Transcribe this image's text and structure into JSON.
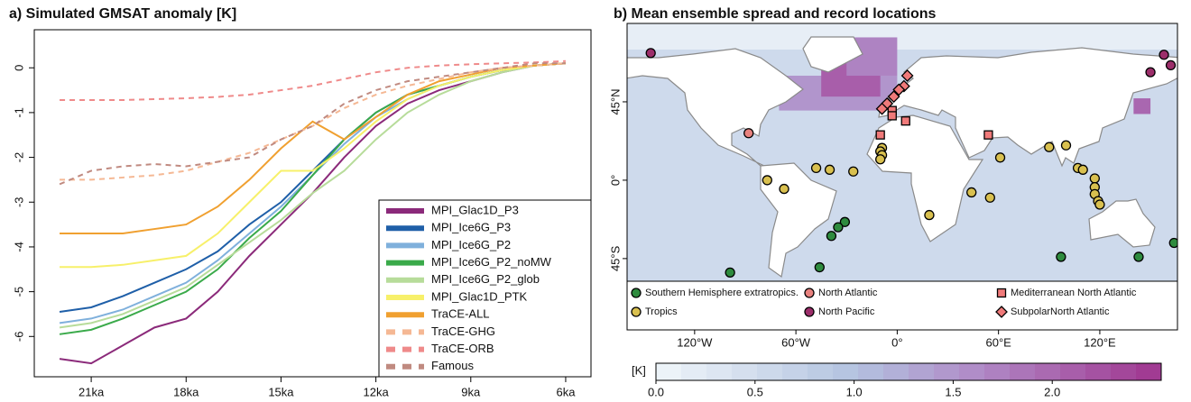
{
  "chart_data": [
    {
      "type": "line",
      "title": "a) Simulated GMSAT anomaly [K]",
      "x": [
        22,
        21,
        20,
        19,
        18,
        17,
        16,
        15,
        14,
        13,
        12,
        11,
        10,
        9,
        8,
        7,
        6
      ],
      "xlim": [
        22.8,
        5.2
      ],
      "xticks": [
        {
          "value": 21,
          "label": "21ka"
        },
        {
          "value": 18,
          "label": "18ka"
        },
        {
          "value": 15,
          "label": "15ka"
        },
        {
          "value": 12,
          "label": "12ka"
        },
        {
          "value": 9,
          "label": "9ka"
        },
        {
          "value": 6,
          "label": "6ka"
        }
      ],
      "ylim": [
        -6.9,
        0.85
      ],
      "yticks": [
        0,
        -1,
        -2,
        -3,
        -4,
        -5,
        -6
      ],
      "series": [
        {
          "name": "MPI_Glac1D_P3",
          "color": "#8b2a7a",
          "style": "solid",
          "values": [
            -6.5,
            -6.6,
            -6.2,
            -5.8,
            -5.6,
            -5.0,
            -4.2,
            -3.5,
            -2.8,
            -2.0,
            -1.3,
            -0.8,
            -0.5,
            -0.3,
            -0.1,
            0.05,
            0.1
          ]
        },
        {
          "name": "MPI_Ice6G_P3",
          "color": "#1f5fa8",
          "style": "solid",
          "values": [
            -5.45,
            -5.35,
            -5.1,
            -4.8,
            -4.5,
            -4.1,
            -3.5,
            -3.0,
            -2.3,
            -1.6,
            -1.0,
            -0.6,
            -0.4,
            -0.2,
            -0.05,
            0.05,
            0.1
          ]
        },
        {
          "name": "MPI_Ice6G_P2",
          "color": "#7fb0dc",
          "style": "solid",
          "values": [
            -5.7,
            -5.6,
            -5.4,
            -5.1,
            -4.8,
            -4.3,
            -3.7,
            -3.1,
            -2.4,
            -1.7,
            -1.1,
            -0.7,
            -0.4,
            -0.2,
            -0.05,
            0.05,
            0.1
          ]
        },
        {
          "name": "MPI_Ice6G_P2_noMW",
          "color": "#3aaa4a",
          "style": "solid",
          "values": [
            -5.95,
            -5.85,
            -5.6,
            -5.3,
            -5.0,
            -4.5,
            -3.8,
            -3.2,
            -2.4,
            -1.6,
            -1.0,
            -0.6,
            -0.4,
            -0.2,
            -0.05,
            0.05,
            0.1
          ]
        },
        {
          "name": "MPI_Ice6G_P2_glob",
          "color": "#b7dc9a",
          "style": "solid",
          "values": [
            -5.8,
            -5.7,
            -5.5,
            -5.2,
            -4.9,
            -4.4,
            -3.9,
            -3.4,
            -2.8,
            -2.3,
            -1.6,
            -1.0,
            -0.6,
            -0.3,
            -0.1,
            0.05,
            0.1
          ]
        },
        {
          "name": "MPI_Glac1D_PTK",
          "color": "#f7f06a",
          "style": "solid",
          "values": [
            -4.45,
            -4.45,
            -4.4,
            -4.3,
            -4.2,
            -3.7,
            -3.0,
            -2.3,
            -2.3,
            -1.8,
            -1.2,
            -0.7,
            -0.4,
            -0.2,
            -0.05,
            0.05,
            0.1
          ]
        },
        {
          "name": "TraCE-ALL",
          "color": "#f0a030",
          "style": "solid",
          "values": [
            -3.7,
            -3.7,
            -3.7,
            -3.6,
            -3.5,
            -3.1,
            -2.5,
            -1.8,
            -1.2,
            -1.6,
            -1.1,
            -0.6,
            -0.3,
            -0.15,
            0,
            0.05,
            0.1
          ]
        },
        {
          "name": "TraCE-GHG",
          "color": "#f5b894",
          "style": "dashed",
          "values": [
            -2.5,
            -2.5,
            -2.45,
            -2.4,
            -2.3,
            -2.1,
            -1.9,
            -1.6,
            -1.3,
            -0.9,
            -0.6,
            -0.4,
            -0.25,
            -0.1,
            0,
            0.05,
            0.1
          ]
        },
        {
          "name": "TraCE-ORB",
          "color": "#ef8a8a",
          "style": "dashed",
          "values": [
            -0.72,
            -0.72,
            -0.72,
            -0.7,
            -0.68,
            -0.65,
            -0.6,
            -0.5,
            -0.4,
            -0.25,
            -0.1,
            0,
            0.05,
            0.08,
            0.1,
            0.12,
            0.15
          ]
        },
        {
          "name": "Famous",
          "color": "#c08a80",
          "style": "dashed",
          "values": [
            -2.6,
            -2.3,
            -2.2,
            -2.15,
            -2.2,
            -2.1,
            -2.0,
            -1.6,
            -1.3,
            -0.8,
            -0.5,
            -0.3,
            -0.2,
            -0.1,
            0,
            0.1,
            0.1
          ]
        }
      ],
      "legend": "lower right"
    },
    {
      "type": "map",
      "title": "b) Mean ensemble spread and record locations",
      "xlim": [
        -160,
        166
      ],
      "ylim": [
        -58,
        90
      ],
      "xticks": [
        {
          "value": -120,
          "label": "120°W"
        },
        {
          "value": -60,
          "label": "60°W"
        },
        {
          "value": 0,
          "label": "0°"
        },
        {
          "value": 60,
          "label": "60°E"
        },
        {
          "value": 120,
          "label": "120°E"
        }
      ],
      "yticks": [
        {
          "value": 45,
          "label": "45°N"
        },
        {
          "value": 0,
          "label": "0°"
        },
        {
          "value": -45,
          "label": "45°S"
        }
      ],
      "spread": [
        {
          "lon": [
            -160,
            166
          ],
          "lat": [
            -58,
            75
          ],
          "value": 0.55
        },
        {
          "lon": [
            -160,
            166
          ],
          "lat": [
            75,
            90
          ],
          "value": 0.15
        },
        {
          "lon": [
            -70,
            0
          ],
          "lat": [
            40,
            60
          ],
          "value": 1.5
        },
        {
          "lon": [
            -45,
            -10
          ],
          "lat": [
            48,
            78
          ],
          "value": 2.1
        },
        {
          "lon": [
            -30,
            0
          ],
          "lat": [
            60,
            82
          ],
          "value": 1.7
        },
        {
          "lon": [
            140,
            150
          ],
          "lat": [
            38,
            47
          ],
          "value": 2.0
        }
      ],
      "colorbar_label": "[K]",
      "colorscale": [
        [
          0,
          "#f0f6fa"
        ],
        [
          1,
          "#b3c3e0"
        ],
        [
          1.6,
          "#b08cc8"
        ],
        [
          2.55,
          "#a0358f"
        ]
      ],
      "clim": [
        0,
        2.55
      ],
      "cticks": [
        {
          "value": 0,
          "label": "0.0"
        },
        {
          "value": 0.5,
          "label": "0.5"
        },
        {
          "value": 1,
          "label": "1.0"
        },
        {
          "value": 1.5,
          "label": "1.5"
        },
        {
          "value": 2,
          "label": "2.0"
        }
      ],
      "groups": [
        {
          "name": "Southern Hemisphere extratropics.",
          "color": "#2e8b3e",
          "marker": "circle",
          "lon": [
            -31,
            -35,
            -39,
            -46,
            -99,
            97,
            143,
            164
          ],
          "lat": [
            -24,
            -27,
            -32,
            -50,
            -53,
            -44,
            -44,
            -36
          ]
        },
        {
          "name": "Tropics",
          "color": "#d9c04f",
          "marker": "circle",
          "lon": [
            -77,
            -67,
            -48,
            -40,
            -26,
            -9,
            -10,
            -9,
            -10,
            19,
            44,
            55,
            61,
            90,
            100,
            107,
            110,
            117,
            117,
            117,
            119,
            120
          ],
          "lat": [
            0,
            -5,
            7,
            6,
            5,
            18.5,
            16.5,
            14.4,
            12,
            -20,
            -7,
            -10,
            13,
            19,
            20,
            7,
            6,
            1,
            -4,
            -8,
            -12,
            -14
          ]
        },
        {
          "name": "North Atlantic",
          "color": "#e8827f",
          "marker": "circle",
          "lon": [
            -88
          ],
          "lat": [
            27
          ]
        },
        {
          "name": "North Pacific",
          "color": "#9c2e6a",
          "marker": "circle",
          "lon": [
            -146,
            158,
            162,
            150
          ],
          "lat": [
            73,
            72,
            66,
            62
          ]
        },
        {
          "name": "Mediterranean North Atlantic",
          "color": "#f07a7a",
          "marker": "square",
          "lon": [
            -10,
            -3,
            -3,
            5,
            54
          ],
          "lat": [
            26,
            40,
            37,
            34,
            26
          ]
        },
        {
          "name": "SubpolarNorth Atlantic",
          "color": "#f07a7a",
          "marker": "diamond",
          "lon": [
            6,
            4,
            1,
            -2,
            -6,
            -9
          ],
          "lat": [
            60,
            54,
            52,
            48,
            44,
            41
          ]
        }
      ]
    }
  ]
}
